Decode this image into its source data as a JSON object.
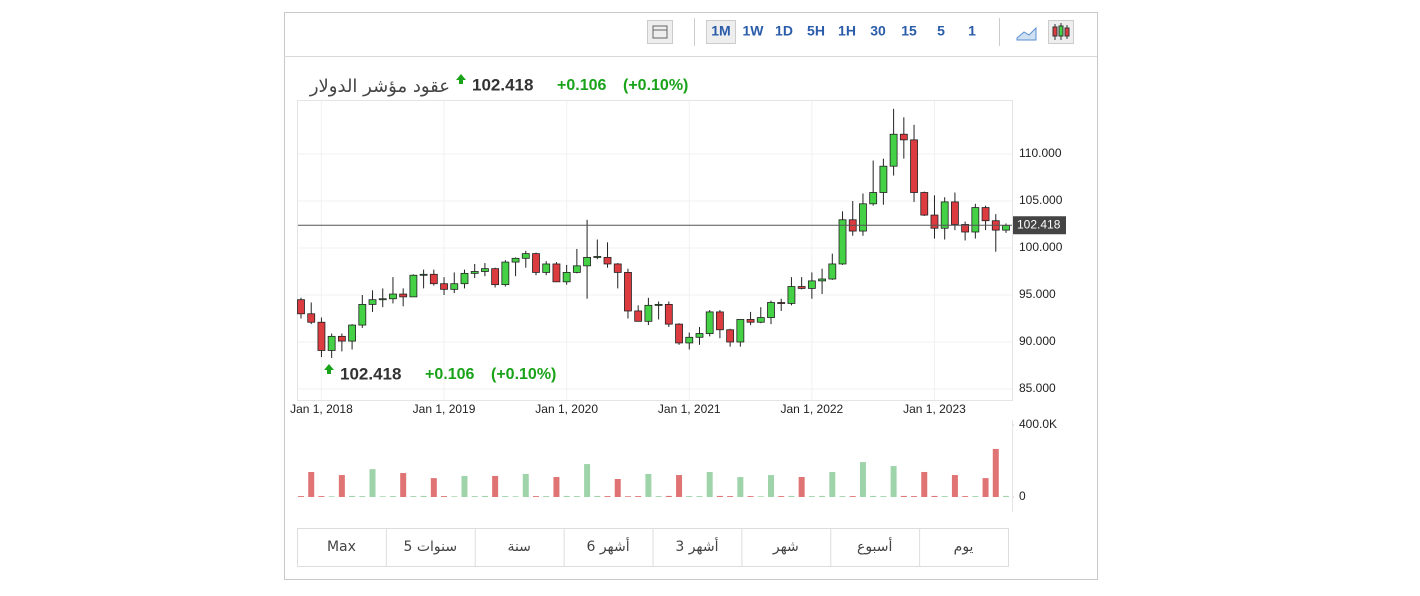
{
  "header": {
    "title": "عقود مؤشر الدولار",
    "price": 102.418,
    "change": "+0.106",
    "change_pct": "(+0.10%)"
  },
  "toolbar": {
    "intervals": [
      "1M",
      "1W",
      "1D",
      "5H",
      "1H",
      "30",
      "15",
      "5",
      "1"
    ],
    "active_interval": "1M"
  },
  "range_tabs": [
    "Max",
    "5 سنوات",
    "سنة",
    "6 أشهر",
    "3 أشهر",
    "شهر",
    "أسبوع",
    "يوم"
  ],
  "chart_data": {
    "type": "candlestick",
    "x": [
      "2017-11",
      "2017-12",
      "2018-01",
      "2018-02",
      "2018-03",
      "2018-04",
      "2018-05",
      "2018-06",
      "2018-07",
      "2018-08",
      "2018-09",
      "2018-10",
      "2018-11",
      "2018-12",
      "2019-01",
      "2019-02",
      "2019-03",
      "2019-04",
      "2019-05",
      "2019-06",
      "2019-07",
      "2019-08",
      "2019-09",
      "2019-10",
      "2019-11",
      "2019-12",
      "2020-01",
      "2020-02",
      "2020-03",
      "2020-04",
      "2020-05",
      "2020-06",
      "2020-07",
      "2020-08",
      "2020-09",
      "2020-10",
      "2020-11",
      "2020-12",
      "2021-01",
      "2021-02",
      "2021-03",
      "2021-04",
      "2021-05",
      "2021-06",
      "2021-07",
      "2021-08",
      "2021-09",
      "2021-10",
      "2021-11",
      "2021-12",
      "2022-01",
      "2022-02",
      "2022-03",
      "2022-04",
      "2022-05",
      "2022-06",
      "2022-07",
      "2022-08",
      "2022-09",
      "2022-10",
      "2022-11",
      "2022-12",
      "2023-01",
      "2023-02",
      "2023-03",
      "2023-04",
      "2023-05",
      "2023-06",
      "2023-07",
      "2023-08"
    ],
    "open": [
      94.5,
      93.0,
      92.1,
      89.1,
      90.6,
      90.1,
      91.8,
      94.0,
      94.5,
      94.6,
      95.1,
      94.8,
      97.1,
      97.2,
      96.2,
      95.6,
      96.2,
      97.3,
      97.5,
      97.8,
      96.1,
      98.5,
      98.9,
      99.4,
      97.4,
      98.3,
      96.4,
      97.4,
      98.1,
      99.0,
      99.0,
      98.3,
      97.4,
      93.3,
      92.2,
      93.9,
      94.0,
      91.9,
      89.9,
      90.5,
      90.9,
      93.2,
      91.3,
      90.0,
      92.4,
      92.1,
      92.6,
      94.2,
      94.1,
      95.9,
      95.7,
      96.5,
      96.7,
      98.3,
      103.0,
      101.8,
      104.7,
      105.9,
      108.7,
      112.1,
      111.5,
      105.9,
      103.5,
      102.1,
      104.9,
      102.5,
      101.7,
      104.3,
      102.9,
      101.9
    ],
    "high": [
      94.7,
      94.2,
      92.6,
      90.9,
      90.9,
      91.9,
      95.0,
      95.5,
      95.7,
      96.9,
      95.7,
      97.2,
      97.7,
      97.7,
      96.9,
      97.4,
      97.7,
      98.3,
      98.4,
      97.9,
      98.7,
      99.0,
      99.7,
      99.5,
      98.6,
      98.5,
      98.2,
      99.9,
      103.0,
      100.9,
      100.6,
      98.4,
      97.8,
      93.9,
      94.7,
      94.3,
      94.3,
      92.0,
      91.0,
      91.6,
      93.4,
      93.4,
      91.4,
      92.4,
      93.2,
      93.7,
      94.4,
      94.6,
      96.9,
      96.9,
      97.4,
      97.8,
      99.4,
      103.9,
      105.0,
      105.8,
      109.3,
      109.5,
      114.8,
      113.9,
      113.1,
      106.0,
      105.6,
      105.4,
      105.9,
      102.8,
      104.7,
      104.5,
      103.6,
      102.6
    ],
    "low": [
      92.5,
      91.9,
      88.4,
      88.3,
      89.0,
      89.2,
      91.5,
      93.2,
      93.7,
      94.1,
      93.8,
      94.8,
      95.7,
      96.0,
      95.0,
      95.2,
      95.7,
      96.8,
      97.0,
      95.8,
      95.9,
      97.0,
      97.9,
      97.1,
      97.1,
      96.4,
      96.1,
      97.3,
      94.6,
      98.8,
      97.9,
      95.7,
      92.5,
      92.2,
      91.8,
      92.4,
      91.6,
      89.7,
      89.2,
      89.7,
      90.6,
      90.4,
      89.5,
      89.5,
      91.8,
      92.0,
      91.9,
      93.3,
      93.9,
      95.6,
      94.6,
      95.1,
      96.6,
      98.2,
      101.3,
      101.3,
      104.5,
      104.6,
      107.7,
      109.5,
      104.9,
      103.4,
      101.0,
      100.9,
      101.9,
      100.8,
      101.0,
      101.9,
      99.6,
      101.6
    ],
    "close": [
      93.0,
      92.1,
      89.1,
      90.6,
      90.1,
      91.8,
      94.0,
      94.5,
      94.6,
      95.1,
      94.8,
      97.1,
      97.2,
      96.2,
      95.6,
      96.2,
      97.3,
      97.5,
      97.8,
      96.1,
      98.5,
      98.9,
      99.4,
      97.4,
      98.3,
      96.4,
      97.4,
      98.1,
      99.0,
      99.1,
      98.3,
      97.4,
      93.3,
      92.2,
      93.9,
      94.0,
      91.9,
      89.9,
      90.5,
      90.9,
      93.2,
      91.3,
      90.0,
      92.4,
      92.1,
      92.6,
      94.2,
      94.1,
      95.9,
      95.7,
      96.5,
      96.7,
      98.3,
      103.0,
      101.8,
      104.7,
      105.9,
      108.7,
      112.1,
      111.5,
      105.9,
      103.5,
      102.1,
      104.9,
      102.5,
      101.7,
      104.3,
      102.9,
      101.9,
      102.4
    ],
    "volume": [
      5000,
      139000,
      5000,
      4000,
      122000,
      6000,
      5000,
      155000,
      4000,
      5000,
      133000,
      5000,
      6000,
      105000,
      5000,
      4000,
      117000,
      5000,
      6000,
      117000,
      5000,
      4000,
      128000,
      5000,
      5000,
      111000,
      6000,
      5000,
      183000,
      6000,
      5000,
      100000,
      4000,
      5000,
      128000,
      5000,
      6000,
      122000,
      5000,
      5000,
      139000,
      6000,
      5000,
      111000,
      5000,
      4000,
      122000,
      5000,
      6000,
      111000,
      5000,
      6000,
      139000,
      5000,
      5000,
      194000,
      6000,
      5000,
      172000,
      6000,
      5000,
      139000,
      6000,
      5000,
      122000,
      5000,
      5000,
      105000,
      267000,
      6000
    ],
    "up_color": "#45d146",
    "down_color": "#dc3b40",
    "volume_up_color": "#9fd4ab",
    "volume_down_color": "#e07474",
    "xlim": [
      "2017-11",
      "2023-08"
    ],
    "xticks": [
      {
        "value": "2018-01",
        "label": "Jan 1, 2018"
      },
      {
        "value": "2019-01",
        "label": "Jan 1, 2019"
      },
      {
        "value": "2020-01",
        "label": "Jan 1, 2020"
      },
      {
        "value": "2021-01",
        "label": "Jan 1, 2021"
      },
      {
        "value": "2022-01",
        "label": "Jan 1, 2022"
      },
      {
        "value": "2023-01",
        "label": "Jan 1, 2023"
      }
    ],
    "ylim": [
      83.83,
      115.74
    ],
    "yticks": [
      {
        "value": 85,
        "label": "85.000"
      },
      {
        "value": 90,
        "label": "90.000"
      },
      {
        "value": 95,
        "label": "95.000"
      },
      {
        "value": 100,
        "label": "100.000"
      },
      {
        "value": 105,
        "label": "105.000"
      },
      {
        "value": 110,
        "label": "110.000"
      }
    ],
    "volume_ylim": [
      0,
      400000
    ],
    "volume_ticks": [
      0,
      {
        "value": 400000,
        "label": "400.0K"
      }
    ],
    "grid": true
  }
}
